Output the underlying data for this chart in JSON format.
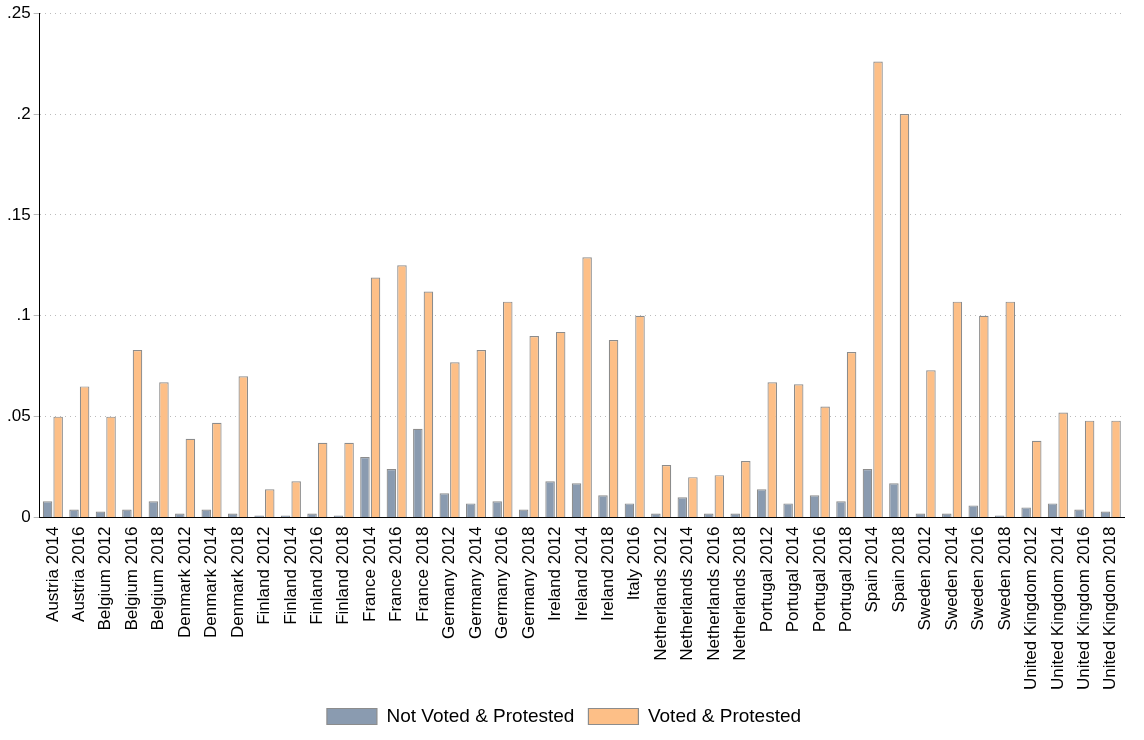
{
  "chart_data": {
    "type": "bar",
    "categories": [
      "Austria 2014",
      "Austria 2016",
      "Belgium 2012",
      "Belgium 2016",
      "Belgium 2018",
      "Denmark 2012",
      "Denmark 2014",
      "Denmark 2018",
      "Finland 2012",
      "Finland 2014",
      "Finland 2016",
      "Finland 2018",
      "France 2014",
      "France 2016",
      "France 2018",
      "Germany 2012",
      "Germany 2014",
      "Germany 2016",
      "Germany 2018",
      "Ireland 2012",
      "Ireland 2014",
      "Ireland 2018",
      "Italy 2016",
      "Netherlands 2012",
      "Netherlands 2014",
      "Netherlands 2016",
      "Netherlands 2018",
      "Portugal 2012",
      "Portugal 2014",
      "Portugal 2016",
      "Portugal 2018",
      "Spain 2014",
      "Spain 2018",
      "Sweden 2012",
      "Sweden 2014",
      "Sweden 2016",
      "Sweden 2018",
      "United Kingdom 2012",
      "United Kingdom 2014",
      "United Kingdom 2016",
      "United Kingdom 2018"
    ],
    "series": [
      {
        "name": "Not Voted & Protested",
        "color": "#8a9bb0",
        "values": [
          0.008,
          0.004,
          0.003,
          0.004,
          0.008,
          0.002,
          0.004,
          0.002,
          0.001,
          0.001,
          0.002,
          0.001,
          0.03,
          0.024,
          0.044,
          0.012,
          0.007,
          0.008,
          0.004,
          0.018,
          0.017,
          0.011,
          0.007,
          0.002,
          0.01,
          0.002,
          0.002,
          0.014,
          0.007,
          0.011,
          0.008,
          0.024,
          0.017,
          0.002,
          0.002,
          0.006,
          0.001,
          0.005,
          0.007,
          0.004,
          0.003
        ]
      },
      {
        "name": "Voted & Protested",
        "color": "#fdbf87",
        "values": [
          0.05,
          0.065,
          0.05,
          0.083,
          0.067,
          0.039,
          0.047,
          0.07,
          0.014,
          0.018,
          0.037,
          0.037,
          0.119,
          0.125,
          0.112,
          0.077,
          0.083,
          0.107,
          0.09,
          0.092,
          0.129,
          0.088,
          0.1,
          0.026,
          0.02,
          0.021,
          0.028,
          0.067,
          0.066,
          0.055,
          0.082,
          0.226,
          0.2,
          0.073,
          0.107,
          0.1,
          0.107,
          0.038,
          0.052,
          0.048,
          0.048
        ]
      }
    ],
    "ylim": [
      0,
      0.25
    ],
    "yticks": [
      {
        "value": 0,
        "label": "0"
      },
      {
        "value": 0.05,
        "label": ".05"
      },
      {
        "value": 0.1,
        "label": ".1"
      },
      {
        "value": 0.15,
        "label": ".15"
      },
      {
        "value": 0.2,
        "label": ".2"
      },
      {
        "value": 0.25,
        "label": ".25"
      }
    ],
    "grid": "y",
    "legend": "bottom"
  }
}
